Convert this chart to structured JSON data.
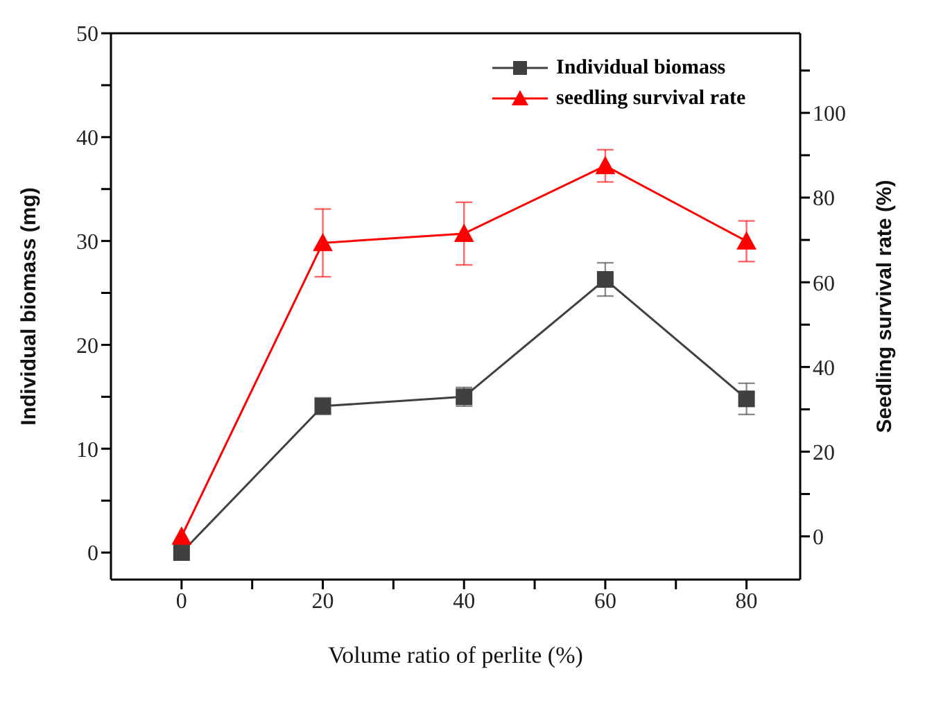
{
  "chart_data": {
    "type": "line",
    "xlabel": "Volume ratio of perlite (%)",
    "ylabel": "Individual biomass (mg)",
    "y2label": "Seedling survival rate (%)",
    "x": [
      0,
      20,
      40,
      60,
      80
    ],
    "xlim": [
      -10,
      87.6
    ],
    "xticks": [
      0,
      {
        "value": 10,
        "label": null
      },
      20,
      {
        "value": 30,
        "label": null
      },
      40,
      {
        "value": 50,
        "label": null
      },
      60,
      {
        "value": 70,
        "label": null
      },
      80
    ],
    "ylim": [
      -2.6,
      50
    ],
    "yticks": [
      0,
      {
        "value": 5,
        "label": null
      },
      10,
      {
        "value": 15,
        "label": null
      },
      20,
      {
        "value": 25,
        "label": null
      },
      30,
      {
        "value": 35,
        "label": null
      },
      40,
      {
        "value": 45,
        "label": null
      },
      50
    ],
    "y2lim": [
      -10.2,
      118.8
    ],
    "y2ticks": [
      0,
      {
        "value": 10,
        "label": null
      },
      20,
      {
        "value": 30,
        "label": null
      },
      40,
      {
        "value": 50,
        "label": null
      },
      60,
      {
        "value": 70,
        "label": null
      },
      80,
      {
        "value": 90,
        "label": null
      },
      100,
      {
        "value": 110,
        "label": null
      }
    ],
    "series": [
      {
        "name": "Individual biomass",
        "color": "#404040",
        "marker": "square",
        "values": [
          0,
          14.1,
          15.0,
          26.3,
          14.8
        ],
        "errors": [
          null,
          0.8,
          0.9,
          1.6,
          1.5
        ]
      },
      {
        "name": "seedling survival rate",
        "color": "#ff0000",
        "marker": "triangle",
        "axis": "y2",
        "values": [
          0,
          69.3,
          71.5,
          87.5,
          69.7
        ],
        "errors": [
          null,
          8.0,
          7.4,
          3.8,
          4.8
        ]
      }
    ],
    "legend": "top right",
    "grid": false,
    "line_style": "solid"
  }
}
